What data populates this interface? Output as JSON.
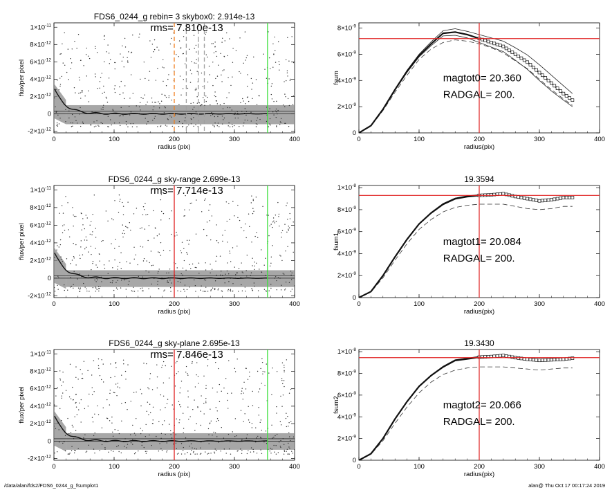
{
  "footer": {
    "path": "/data/alan/fds2/FDS6_0244_g_fsumplot1",
    "user_time": "alan@  Thu Oct 17 00:17:24 2019"
  },
  "colors": {
    "scatter": "#8a8a8a",
    "dots": "#303030",
    "red_marker": "#e02020",
    "green_marker": "#40e040",
    "orange_marker": "#f08020",
    "dashed_gray": "#a0a0a0"
  },
  "chart_data": [
    {
      "type": "scatter",
      "panel": "profile",
      "title": "FDS6_0244_g rebin= 3    skybox0:  2.914e-13",
      "annotation": "rms= 7.810e-13",
      "xlabel": "radius (pix)",
      "ylabel": "flux/per pixel",
      "xlim": [
        0,
        400
      ],
      "ylim": [
        -2.2e-12,
        1.05e-11
      ],
      "xticks": [
        {
          "v": 0,
          "label": "0"
        },
        {
          "v": 100,
          "label": "100"
        },
        {
          "v": 200,
          "label": "200"
        },
        {
          "v": 300,
          "label": "300"
        },
        {
          "v": 400,
          "label": "400"
        }
      ],
      "yticks": [
        {
          "v": -2e-12,
          "base": "-2×10",
          "exp": "-12"
        },
        {
          "v": 0,
          "base": "0",
          "exp": ""
        },
        {
          "v": 2e-12,
          "base": "2×10",
          "exp": "-12"
        },
        {
          "v": 4e-12,
          "base": "4×10",
          "exp": "-12"
        },
        {
          "v": 6e-12,
          "base": "6×10",
          "exp": "-12"
        },
        {
          "v": 8e-12,
          "base": "8×10",
          "exp": "-12"
        },
        {
          "v": 1e-11,
          "base": "1×10",
          "exp": "-11"
        }
      ],
      "band": [
        -1.2e-12,
        1e-12
      ],
      "vlines": [
        {
          "x": 200,
          "color": "orange",
          "dash": true
        },
        {
          "x": 220,
          "color": "gray",
          "dash": true
        },
        {
          "x": 240,
          "color": "gray",
          "dash": true
        },
        {
          "x": 250,
          "color": "gray",
          "dash": true
        },
        {
          "x": 355,
          "color": "green",
          "dash": false
        }
      ],
      "hlines": [
        0,
        2.914e-13
      ]
    },
    {
      "type": "line",
      "panel": "curve",
      "title": "",
      "ylabel": "fsum",
      "xlabel": "radius(pix)",
      "xlim": [
        0,
        400
      ],
      "ylim": [
        0,
        8.4e-09
      ],
      "xticks": [
        {
          "v": 0,
          "label": "0"
        },
        {
          "v": 100,
          "label": "100"
        },
        {
          "v": 200,
          "label": "200"
        },
        {
          "v": 300,
          "label": "300"
        },
        {
          "v": 400,
          "label": "400"
        }
      ],
      "yticks": [
        {
          "v": 0,
          "base": "0",
          "exp": ""
        },
        {
          "v": 2e-09,
          "base": "2×10",
          "exp": "-9"
        },
        {
          "v": 4e-09,
          "base": "4×10",
          "exp": "-9"
        },
        {
          "v": 6e-09,
          "base": "6×10",
          "exp": "-9"
        },
        {
          "v": 8e-09,
          "base": "8×10",
          "exp": "-9"
        }
      ],
      "annot1": "magtot0=  20.360",
      "annot2": "RADGAL=    200.",
      "hline": 7.2e-09,
      "vline": 200,
      "x": [
        0,
        20,
        40,
        60,
        80,
        100,
        120,
        140,
        160,
        180,
        200,
        220,
        240,
        260,
        280,
        300,
        320,
        340,
        355
      ],
      "main": [
        0,
        5.5e-10,
        1.8e-09,
        3.3e-09,
        4.7e-09,
        5.9e-09,
        6.8e-09,
        7.6e-09,
        7.7e-09,
        7.5e-09,
        7.2e-09,
        6.9e-09,
        6.6e-09,
        6e-09,
        5.4e-09,
        4.6e-09,
        3.8e-09,
        3e-09,
        2.5e-09
      ],
      "upper": [
        0,
        5.6e-10,
        1.82e-09,
        3.35e-09,
        4.78e-09,
        6e-09,
        6.95e-09,
        7.8e-09,
        7.95e-09,
        7.75e-09,
        7.5e-09,
        7.25e-09,
        7e-09,
        6.5e-09,
        5.95e-09,
        5.2e-09,
        4.4e-09,
        3.6e-09,
        3e-09
      ],
      "lower": [
        0,
        5.4e-10,
        1.78e-09,
        3.25e-09,
        4.62e-09,
        5.8e-09,
        6.65e-09,
        7.4e-09,
        7.45e-09,
        7.25e-09,
        6.9e-09,
        6.55e-09,
        6.2e-09,
        5.55e-09,
        4.85e-09,
        4e-09,
        3.2e-09,
        2.5e-09,
        2e-09
      ],
      "dashed": [
        0,
        5e-10,
        1.7e-09,
        3.1e-09,
        4.4e-09,
        5.6e-09,
        6.4e-09,
        6.9e-09,
        7.1e-09,
        7e-09,
        6.8e-09,
        6.5e-09,
        6.1e-09,
        5.5e-09,
        4.9e-09,
        4.1e-09,
        3.3e-09,
        2.6e-09,
        2.1e-09
      ],
      "marker_from": 200
    },
    {
      "type": "scatter",
      "panel": "profile",
      "title": "FDS6_0244_g sky-range  2.699e-13",
      "annotation": "rms= 7.714e-13",
      "xlabel": "radius (pix)",
      "ylabel": "flux/per pixel",
      "xlim": [
        0,
        400
      ],
      "ylim": [
        -2.2e-12,
        1.05e-11
      ],
      "xticks": [
        {
          "v": 0,
          "label": "0"
        },
        {
          "v": 100,
          "label": "100"
        },
        {
          "v": 200,
          "label": "200"
        },
        {
          "v": 300,
          "label": "300"
        },
        {
          "v": 400,
          "label": "400"
        }
      ],
      "yticks": [
        {
          "v": -2e-12,
          "base": "-2×10",
          "exp": "-12"
        },
        {
          "v": 0,
          "base": "0",
          "exp": ""
        },
        {
          "v": 2e-12,
          "base": "2×10",
          "exp": "-12"
        },
        {
          "v": 4e-12,
          "base": "4×10",
          "exp": "-12"
        },
        {
          "v": 6e-12,
          "base": "6×10",
          "exp": "-12"
        },
        {
          "v": 8e-12,
          "base": "8×10",
          "exp": "-12"
        },
        {
          "v": 1e-11,
          "base": "1×10",
          "exp": "-11"
        }
      ],
      "band": [
        -1e-12,
        9e-13
      ],
      "vlines": [
        {
          "x": 200,
          "color": "red",
          "dash": false
        },
        {
          "x": 355,
          "color": "green",
          "dash": false
        }
      ],
      "hlines": [
        0,
        2.699e-13
      ]
    },
    {
      "type": "line",
      "panel": "curve",
      "title": "19.3594",
      "ylabel": "fsum1",
      "xlabel": "radius(pix)",
      "xlim": [
        0,
        400
      ],
      "ylim": [
        0,
        1.02e-08
      ],
      "xticks": [
        {
          "v": 0,
          "label": "0"
        },
        {
          "v": 100,
          "label": "100"
        },
        {
          "v": 200,
          "label": "200"
        },
        {
          "v": 300,
          "label": "300"
        },
        {
          "v": 400,
          "label": "400"
        }
      ],
      "yticks": [
        {
          "v": 0,
          "base": "0",
          "exp": ""
        },
        {
          "v": 2e-09,
          "base": "2×10",
          "exp": "-9"
        },
        {
          "v": 4e-09,
          "base": "4×10",
          "exp": "-9"
        },
        {
          "v": 6e-09,
          "base": "6×10",
          "exp": "-9"
        },
        {
          "v": 8e-09,
          "base": "8×10",
          "exp": "-9"
        },
        {
          "v": 1e-08,
          "base": "1×10",
          "exp": "-8"
        }
      ],
      "annot1": "magtot1=  20.084",
      "annot2": "RADGAL=    200.",
      "hline": 9.3e-09,
      "vline": 200,
      "x": [
        0,
        20,
        40,
        60,
        80,
        100,
        120,
        140,
        160,
        180,
        200,
        220,
        240,
        260,
        280,
        300,
        320,
        340,
        355
      ],
      "main": [
        0,
        5.5e-10,
        2e-09,
        3.7e-09,
        5.3e-09,
        6.7e-09,
        7.7e-09,
        8.5e-09,
        9e-09,
        9.2e-09,
        9.3e-09,
        9.35e-09,
        9.45e-09,
        9.2e-09,
        9e-09,
        8.8e-09,
        8.9e-09,
        9.1e-09,
        9.1e-09
      ],
      "upper": [
        0,
        5.6e-10,
        2.02e-09,
        3.72e-09,
        5.33e-09,
        6.74e-09,
        7.75e-09,
        8.56e-09,
        9.06e-09,
        9.26e-09,
        9.36e-09,
        9.42e-09,
        9.52e-09,
        9.3e-09,
        9.1e-09,
        8.9e-09,
        9e-09,
        9.2e-09,
        9.2e-09
      ],
      "lower": [
        0,
        5.4e-10,
        1.98e-09,
        3.68e-09,
        5.27e-09,
        6.66e-09,
        7.65e-09,
        8.44e-09,
        8.94e-09,
        9.14e-09,
        9.24e-09,
        9.28e-09,
        9.38e-09,
        9.1e-09,
        8.9e-09,
        8.7e-09,
        8.8e-09,
        9e-09,
        9e-09
      ],
      "dashed": [
        0,
        5e-10,
        1.8e-09,
        3.4e-09,
        4.9e-09,
        6.2e-09,
        7.1e-09,
        7.8e-09,
        8.2e-09,
        8.4e-09,
        8.5e-09,
        8.5e-09,
        8.5e-09,
        8.3e-09,
        8.1e-09,
        8e-09,
        8.1e-09,
        8.3e-09,
        8.3e-09
      ],
      "marker_from": 200
    },
    {
      "type": "scatter",
      "panel": "profile",
      "title": "FDS6_0244_g sky-plane  2.695e-13",
      "annotation": "rms= 7.846e-13",
      "xlabel": "radius (pix)",
      "ylabel": "flux/per pixel",
      "xlim": [
        0,
        400
      ],
      "ylim": [
        -2.2e-12,
        1.05e-11
      ],
      "xticks": [
        {
          "v": 0,
          "label": "0"
        },
        {
          "v": 100,
          "label": "100"
        },
        {
          "v": 200,
          "label": "200"
        },
        {
          "v": 300,
          "label": "300"
        },
        {
          "v": 400,
          "label": "400"
        }
      ],
      "yticks": [
        {
          "v": -2e-12,
          "base": "-2×10",
          "exp": "-12"
        },
        {
          "v": 0,
          "base": "0",
          "exp": ""
        },
        {
          "v": 2e-12,
          "base": "2×10",
          "exp": "-12"
        },
        {
          "v": 4e-12,
          "base": "4×10",
          "exp": "-12"
        },
        {
          "v": 6e-12,
          "base": "6×10",
          "exp": "-12"
        },
        {
          "v": 8e-12,
          "base": "8×10",
          "exp": "-12"
        },
        {
          "v": 1e-11,
          "base": "1×10",
          "exp": "-11"
        }
      ],
      "band": [
        -1e-12,
        9e-13
      ],
      "vlines": [
        {
          "x": 200,
          "color": "red",
          "dash": false
        },
        {
          "x": 355,
          "color": "green",
          "dash": false
        }
      ],
      "hlines": [
        0,
        2.695e-13
      ]
    },
    {
      "type": "line",
      "panel": "curve",
      "title": "19.3430",
      "ylabel": "fsum2",
      "xlabel": "radius(pix)",
      "xlim": [
        0,
        400
      ],
      "ylim": [
        0,
        1.02e-08
      ],
      "xticks": [
        {
          "v": 0,
          "label": "0"
        },
        {
          "v": 100,
          "label": "100"
        },
        {
          "v": 200,
          "label": "200"
        },
        {
          "v": 300,
          "label": "300"
        },
        {
          "v": 400,
          "label": "400"
        }
      ],
      "yticks": [
        {
          "v": 0,
          "base": "0",
          "exp": ""
        },
        {
          "v": 2e-09,
          "base": "2×10",
          "exp": "-9"
        },
        {
          "v": 4e-09,
          "base": "4×10",
          "exp": "-9"
        },
        {
          "v": 6e-09,
          "base": "6×10",
          "exp": "-9"
        },
        {
          "v": 8e-09,
          "base": "8×10",
          "exp": "-9"
        },
        {
          "v": 1e-08,
          "base": "1×10",
          "exp": "-8"
        }
      ],
      "annot1": "magtot2=  20.066",
      "annot2": "RADGAL=    200.",
      "hline": 9.45e-09,
      "vline": 200,
      "x": [
        0,
        20,
        40,
        60,
        80,
        100,
        120,
        140,
        160,
        180,
        200,
        220,
        240,
        260,
        280,
        300,
        320,
        340,
        355
      ],
      "main": [
        0,
        6e-10,
        2e-09,
        3.8e-09,
        5.4e-09,
        6.8e-09,
        7.8e-09,
        8.6e-09,
        9.2e-09,
        9.35e-09,
        9.5e-09,
        9.55e-09,
        9.65e-09,
        9.45e-09,
        9.3e-09,
        9.2e-09,
        9.25e-09,
        9.3e-09,
        9.4e-09
      ],
      "upper": [
        0,
        6.1e-10,
        2.02e-09,
        3.82e-09,
        5.43e-09,
        6.84e-09,
        7.85e-09,
        8.66e-09,
        9.26e-09,
        9.41e-09,
        9.56e-09,
        9.62e-09,
        9.72e-09,
        9.55e-09,
        9.4e-09,
        9.3e-09,
        9.35e-09,
        9.4e-09,
        9.5e-09
      ],
      "lower": [
        0,
        5.9e-10,
        1.98e-09,
        3.78e-09,
        5.37e-09,
        6.76e-09,
        7.75e-09,
        8.54e-09,
        9.14e-09,
        9.29e-09,
        9.44e-09,
        9.48e-09,
        9.58e-09,
        9.35e-09,
        9.2e-09,
        9.1e-09,
        9.15e-09,
        9.2e-09,
        9.3e-09
      ],
      "dashed": [
        0,
        5.5e-10,
        1.8e-09,
        3.4e-09,
        4.9e-09,
        6.2e-09,
        7.2e-09,
        7.9e-09,
        8.3e-09,
        8.5e-09,
        8.6e-09,
        8.6e-09,
        8.6e-09,
        8.5e-09,
        8.4e-09,
        8.3e-09,
        8.4e-09,
        8.5e-09,
        8.5e-09
      ],
      "marker_from": 200
    }
  ]
}
